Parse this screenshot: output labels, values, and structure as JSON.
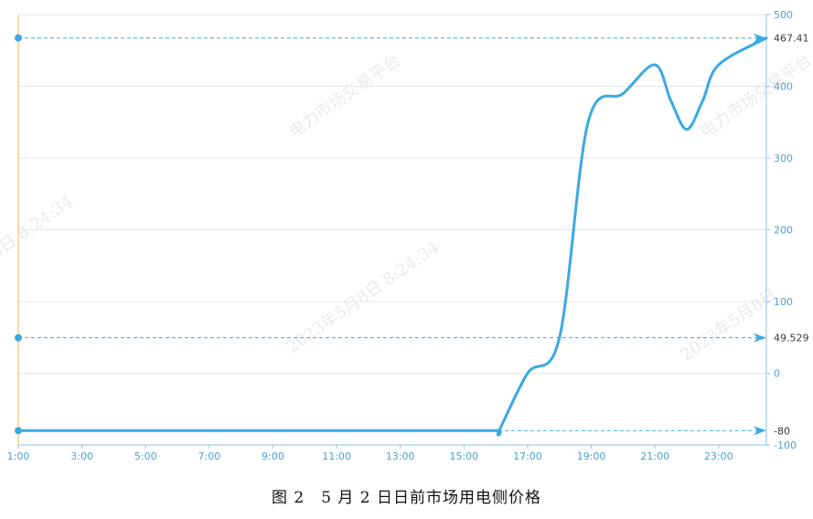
{
  "caption": "图 2　5 月 2 日日前市场用电侧价格",
  "watermarks": [
    "电力市场交易平台",
    "2023年5月8日 8:24:34",
    "2023年5月8日"
  ],
  "colors": {
    "line": "#3aa9e3",
    "axis": "#8fc3e6",
    "grid": "#e6e6e6",
    "tick": "#4a9fd6",
    "left_axis": "#f5c26b"
  },
  "chart_data": {
    "type": "line",
    "x_tick_labels": [
      "1:00",
      "3:00",
      "5:00",
      "7:00",
      "9:00",
      "11:00",
      "13:00",
      "15:00",
      "17:00",
      "19:00",
      "21:00",
      "23:00"
    ],
    "y_tick_labels": [
      "500",
      "400",
      "300",
      "200",
      "100",
      "0",
      "-100"
    ],
    "ylim": [
      -100,
      500
    ],
    "xlim": [
      1,
      24.5
    ],
    "series": [
      {
        "x": [
          1,
          2,
          4,
          6,
          8,
          10,
          12,
          14,
          16,
          16.1,
          17,
          18,
          18.9,
          20,
          21,
          21.5,
          22,
          22.5,
          23,
          24.5
        ],
        "y": [
          -80,
          -80,
          -80,
          -80,
          -80,
          -80,
          -80,
          -80,
          -80,
          -80,
          0,
          49.529,
          350,
          390,
          430,
          380,
          340,
          380,
          430,
          467.41
        ]
      }
    ],
    "reference_lines": [
      {
        "value": 467.41,
        "label": "467.41"
      },
      {
        "value": 49.529,
        "label": "49.529"
      },
      {
        "value": -80,
        "label": "-80"
      }
    ],
    "grid": true
  }
}
